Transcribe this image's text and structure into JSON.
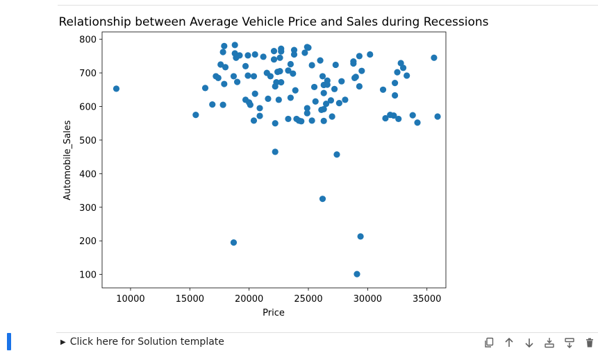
{
  "chart_data": {
    "type": "scatter",
    "title": "Relationship between Average Vehicle Price and Sales during Recessions",
    "xlabel": "Price",
    "ylabel": "Automobile_Sales",
    "xlim": [
      7600,
      36600
    ],
    "ylim": [
      60,
      822
    ],
    "xticks": [
      10000,
      15000,
      20000,
      25000,
      30000,
      35000
    ],
    "yticks": [
      100,
      200,
      300,
      400,
      500,
      600,
      700,
      800
    ],
    "color": "#1f77b4",
    "grid": false,
    "points": [
      [
        8800,
        653
      ],
      [
        15500,
        575
      ],
      [
        16300,
        655
      ],
      [
        16900,
        606
      ],
      [
        17200,
        690
      ],
      [
        17400,
        685
      ],
      [
        17600,
        725
      ],
      [
        17800,
        762
      ],
      [
        17800,
        605
      ],
      [
        17900,
        780
      ],
      [
        17900,
        667
      ],
      [
        18000,
        717
      ],
      [
        18700,
        195
      ],
      [
        18700,
        690
      ],
      [
        18800,
        783
      ],
      [
        18800,
        758
      ],
      [
        18900,
        745
      ],
      [
        19000,
        673
      ],
      [
        19200,
        752
      ],
      [
        19700,
        720
      ],
      [
        19700,
        620
      ],
      [
        19900,
        752
      ],
      [
        19900,
        692
      ],
      [
        20000,
        612
      ],
      [
        20100,
        605
      ],
      [
        20400,
        690
      ],
      [
        20400,
        558
      ],
      [
        20500,
        755
      ],
      [
        20500,
        638
      ],
      [
        20900,
        572
      ],
      [
        20900,
        595
      ],
      [
        21200,
        748
      ],
      [
        21500,
        700
      ],
      [
        21600,
        623
      ],
      [
        21800,
        690
      ],
      [
        22100,
        765
      ],
      [
        22100,
        740
      ],
      [
        22200,
        550
      ],
      [
        22200,
        465
      ],
      [
        22200,
        660
      ],
      [
        22300,
        672
      ],
      [
        22400,
        703
      ],
      [
        22500,
        620
      ],
      [
        22600,
        745
      ],
      [
        22600,
        705
      ],
      [
        22700,
        772
      ],
      [
        22700,
        764
      ],
      [
        22700,
        672
      ],
      [
        23300,
        563
      ],
      [
        23300,
        707
      ],
      [
        23500,
        726
      ],
      [
        23500,
        626
      ],
      [
        23700,
        698
      ],
      [
        23800,
        768
      ],
      [
        23800,
        755
      ],
      [
        23900,
        648
      ],
      [
        24000,
        563
      ],
      [
        24200,
        558
      ],
      [
        24400,
        556
      ],
      [
        24700,
        760
      ],
      [
        24900,
        777
      ],
      [
        24900,
        595
      ],
      [
        24900,
        580
      ],
      [
        25000,
        775
      ],
      [
        25300,
        723
      ],
      [
        25300,
        558
      ],
      [
        25500,
        658
      ],
      [
        25600,
        615
      ],
      [
        26000,
        737
      ],
      [
        26100,
        590
      ],
      [
        26200,
        325
      ],
      [
        26200,
        690
      ],
      [
        26300,
        664
      ],
      [
        26300,
        640
      ],
      [
        26300,
        592
      ],
      [
        26300,
        557
      ],
      [
        26500,
        608
      ],
      [
        26600,
        677
      ],
      [
        26600,
        665
      ],
      [
        26900,
        618
      ],
      [
        27000,
        570
      ],
      [
        27200,
        652
      ],
      [
        27300,
        724
      ],
      [
        27400,
        457
      ],
      [
        27600,
        610
      ],
      [
        27800,
        675
      ],
      [
        28100,
        620
      ],
      [
        28800,
        734
      ],
      [
        28800,
        728
      ],
      [
        28900,
        685
      ],
      [
        29000,
        688
      ],
      [
        29100,
        101
      ],
      [
        29300,
        750
      ],
      [
        29300,
        660
      ],
      [
        29400,
        213
      ],
      [
        29500,
        706
      ],
      [
        30200,
        755
      ],
      [
        31300,
        650
      ],
      [
        31500,
        565
      ],
      [
        31900,
        575
      ],
      [
        32200,
        573
      ],
      [
        32300,
        633
      ],
      [
        32300,
        670
      ],
      [
        32500,
        702
      ],
      [
        32600,
        563
      ],
      [
        32800,
        729
      ],
      [
        33000,
        715
      ],
      [
        33300,
        692
      ],
      [
        33800,
        574
      ],
      [
        34200,
        552
      ],
      [
        35600,
        745
      ],
      [
        35900,
        570
      ]
    ]
  },
  "cell": {
    "solution_label": "Click here for Solution template",
    "disclosure_glyph": "▶"
  },
  "toolbar": {
    "icons": [
      "duplicate-icon",
      "move-up-icon",
      "move-down-icon",
      "insert-below-icon",
      "merge-icon",
      "delete-icon"
    ]
  }
}
